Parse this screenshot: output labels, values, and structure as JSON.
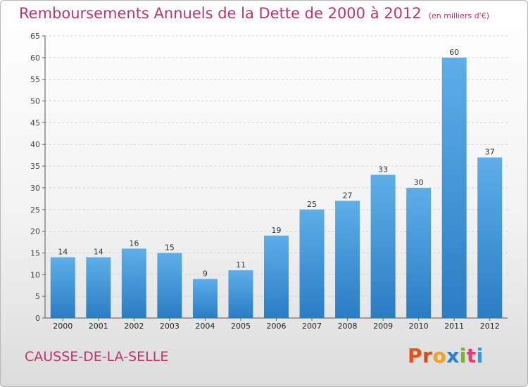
{
  "header": {
    "title": "Remboursements Annuels de la Dette de 2000 à 2012",
    "unit": "(en milliers d'€)"
  },
  "footer": {
    "commune": "CAUSSE-DE-LA-SELLE",
    "logo": "Proxiti"
  },
  "colors": {
    "title": "#c0336b",
    "bar_top": "#5daee8",
    "bar_bottom": "#2a7dc4",
    "logo_letters": [
      "#e8521a",
      "#d94b1f",
      "#f2a51c",
      "#2f7fd0",
      "#79b52a",
      "#e83a78",
      "#2f9be0"
    ]
  },
  "chart_data": {
    "type": "bar",
    "categories": [
      "2000",
      "2001",
      "2002",
      "2003",
      "2004",
      "2005",
      "2006",
      "2007",
      "2008",
      "2009",
      "2010",
      "2011",
      "2012"
    ],
    "values": [
      14,
      14,
      16,
      15,
      9,
      11,
      19,
      25,
      27,
      33,
      30,
      60,
      37
    ],
    "data_labels": [
      "14",
      "14",
      "16",
      "15",
      "9",
      "11",
      "19",
      "25",
      "27",
      "33",
      "30",
      "60",
      "37"
    ],
    "yticks": [
      "0",
      "5",
      "10",
      "15",
      "20",
      "25",
      "30",
      "35",
      "40",
      "45",
      "50",
      "55",
      "60",
      "65"
    ],
    "ylim": [
      0,
      65
    ],
    "grid": "horizontal dashed",
    "legend": "none"
  }
}
